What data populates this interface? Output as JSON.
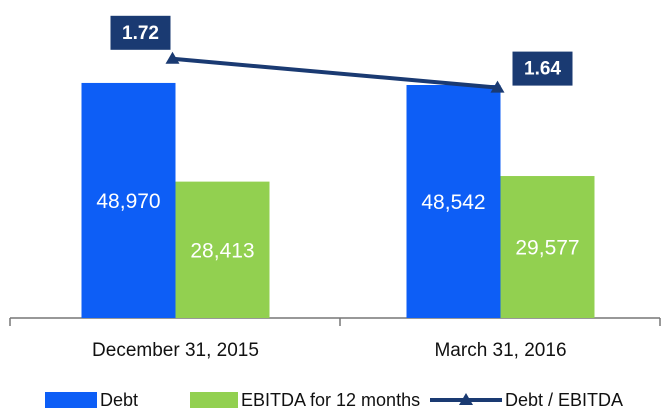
{
  "chart_data": {
    "type": "bar",
    "categories": [
      "December 31, 2015",
      "March 31, 2016"
    ],
    "series": [
      {
        "name": "Debt",
        "color": "#0d5ef6",
        "values": [
          48970,
          48542
        ],
        "value_labels": [
          "48,970",
          "48,542"
        ]
      },
      {
        "name": "EBITDA for 12 months",
        "color": "#92d050",
        "values": [
          28413,
          29577
        ],
        "value_labels": [
          "28,413",
          "29,577"
        ]
      },
      {
        "name": "Debt / EBITDA",
        "type": "line",
        "axis": "y2",
        "color": "#1a3a72",
        "values": [
          1.72,
          1.64
        ]
      }
    ],
    "ylim": [
      0,
      60000
    ],
    "y2lim": [
      1.0,
      1.8
    ],
    "legend": "bottom"
  }
}
